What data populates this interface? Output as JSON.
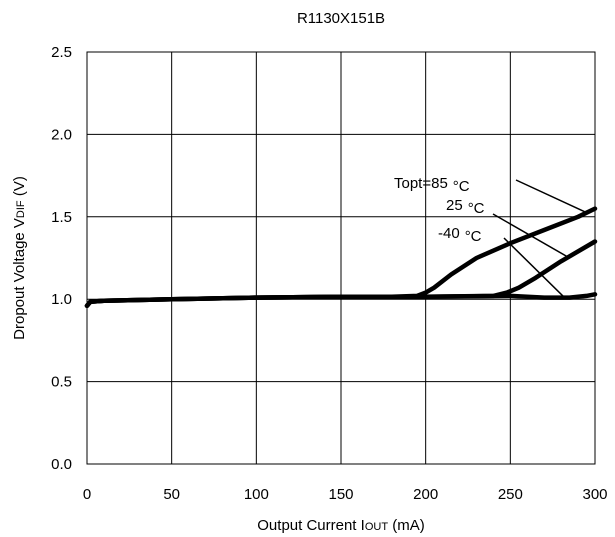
{
  "chart_data": {
    "type": "line",
    "title": "R1130X151B",
    "xlabel": {
      "main": "Output Current I",
      "sub": "OUT",
      "unit": " (mA)"
    },
    "ylabel": {
      "main": "Dropout Voltage V",
      "sub": "DIF",
      "unit": " (V)"
    },
    "xlim": [
      0,
      300
    ],
    "ylim": [
      0,
      2.5
    ],
    "xticks": [
      0,
      50,
      100,
      150,
      200,
      250,
      300
    ],
    "yticks": [
      0.0,
      0.5,
      1.0,
      1.5,
      2.0,
      2.5
    ],
    "xtick_labels": [
      "0",
      "50",
      "100",
      "150",
      "200",
      "250",
      "300"
    ],
    "ytick_labels": [
      "0.0",
      "0.5",
      "1.0",
      "1.5",
      "2.0",
      "2.5"
    ],
    "grid": true,
    "series": [
      {
        "name": "85°C",
        "x": [
          0,
          2,
          10,
          50,
          100,
          150,
          180,
          195,
          200,
          205,
          215,
          230,
          250,
          270,
          290,
          300
        ],
        "y": [
          0.96,
          0.985,
          0.99,
          1.0,
          1.01,
          1.015,
          1.015,
          1.02,
          1.04,
          1.07,
          1.15,
          1.25,
          1.34,
          1.42,
          1.5,
          1.55
        ]
      },
      {
        "name": "25°C",
        "x": [
          0,
          2,
          10,
          50,
          100,
          150,
          200,
          240,
          248,
          255,
          265,
          280,
          300
        ],
        "y": [
          0.96,
          0.985,
          0.99,
          1.0,
          1.01,
          1.015,
          1.015,
          1.02,
          1.04,
          1.07,
          1.13,
          1.23,
          1.35
        ]
      },
      {
        "name": "-40°C",
        "x": [
          0,
          2,
          10,
          50,
          100,
          150,
          200,
          250,
          270,
          285,
          295,
          300
        ],
        "y": [
          0.96,
          0.985,
          0.99,
          1.0,
          1.01,
          1.015,
          1.015,
          1.02,
          1.01,
          1.01,
          1.02,
          1.03
        ]
      }
    ],
    "annotations": [
      {
        "label_main": "Topt=85",
        "label_unit": "°C",
        "pointer_to": [
          294,
          1.53
        ]
      },
      {
        "label_main": "25",
        "label_unit": "°C",
        "pointer_to": [
          285,
          1.25
        ]
      },
      {
        "label_main": "-40",
        "label_unit": "°C",
        "pointer_to": [
          282,
          1.01
        ]
      }
    ]
  }
}
